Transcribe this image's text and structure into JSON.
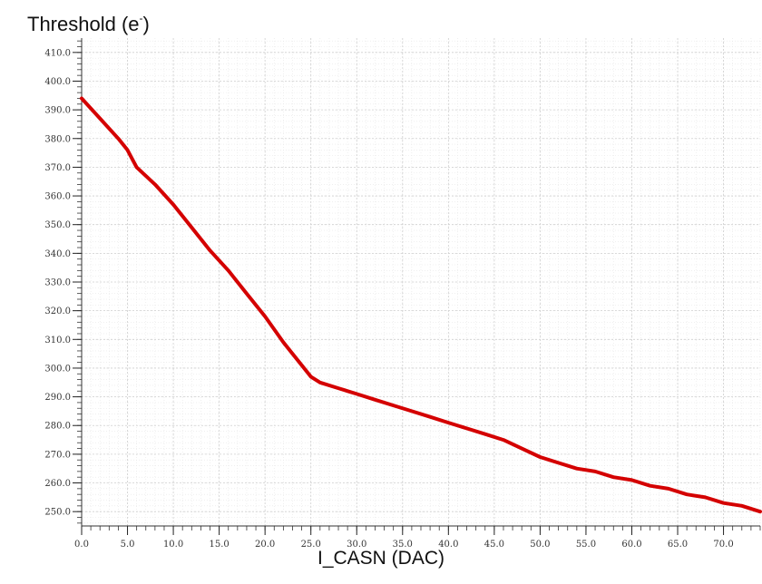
{
  "chart_data": {
    "type": "line",
    "title": {
      "main": "Threshold (e",
      "sup": "-",
      "end": ")"
    },
    "xlabel": "I_CASN (DAC)",
    "ylabel": "",
    "xlim": [
      0,
      74
    ],
    "ylim": [
      245,
      415
    ],
    "xticks": [
      0,
      5,
      10,
      15,
      20,
      25,
      30,
      35,
      40,
      45,
      50,
      55,
      60,
      65,
      70
    ],
    "xtick_labels": [
      "0.0",
      "5.0",
      "10.0",
      "15.0",
      "20.0",
      "25.0",
      "30.0",
      "35.0",
      "40.0",
      "45.0",
      "50.0",
      "55.0",
      "60.0",
      "65.0",
      "70.0"
    ],
    "yticks": [
      250,
      260,
      270,
      280,
      290,
      300,
      310,
      320,
      330,
      340,
      350,
      360,
      370,
      380,
      390,
      400,
      410
    ],
    "ytick_labels": [
      "250.0",
      "260.0",
      "270.0",
      "280.0",
      "290.0",
      "300.0",
      "310.0",
      "320.0",
      "330.0",
      "340.0",
      "350.0",
      "360.0",
      "370.0",
      "380.0",
      "390.0",
      "400.0",
      "410.0"
    ],
    "grid": true,
    "series": [
      {
        "color": "#d40000",
        "x": [
          0,
          2,
          4,
          5,
          6,
          8,
          10,
          12,
          14,
          16,
          18,
          20,
          22,
          24,
          25,
          26,
          28,
          30,
          32,
          34,
          36,
          38,
          40,
          42,
          44,
          46,
          48,
          50,
          52,
          54,
          56,
          58,
          60,
          62,
          64,
          66,
          68,
          70,
          72,
          74
        ],
        "y": [
          394,
          387,
          380,
          376,
          370,
          364,
          357,
          349,
          341,
          334,
          326,
          318,
          309,
          301,
          297,
          295,
          293,
          291,
          289,
          287,
          285,
          283,
          281,
          279,
          277,
          275,
          272,
          269,
          267,
          265,
          264,
          262,
          261,
          259,
          258,
          256,
          255,
          253,
          252,
          250
        ]
      }
    ]
  }
}
